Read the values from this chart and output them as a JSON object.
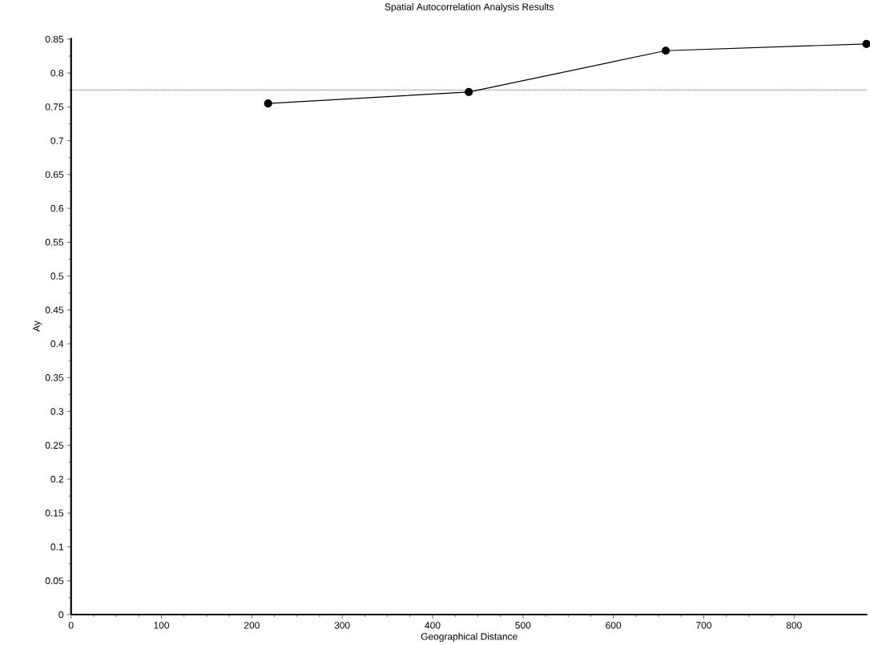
{
  "chart_data": {
    "type": "line",
    "title": "Spatial Autocorrelation Analysis Results",
    "xlabel": "Geographical Distance",
    "ylabel": "Ay",
    "x": [
      218,
      440,
      658,
      880
    ],
    "series": [
      {
        "color": "#000000",
        "values": [
          0.755,
          0.772,
          0.833,
          0.843
        ]
      }
    ],
    "xlim": [
      0,
      881
    ],
    "xticks": [
      0,
      100,
      200,
      300,
      400,
      500,
      600,
      700,
      800
    ],
    "ylim": [
      0,
      0.852
    ],
    "yticks": [
      0,
      0.05,
      0.1,
      0.15,
      0.2,
      0.25,
      0.3,
      0.35,
      0.4,
      0.45,
      0.5,
      0.55,
      0.6,
      0.65,
      0.7,
      0.75,
      0.8,
      0.85
    ],
    "ref_lines": [
      {
        "axis": "y",
        "value": 0.775,
        "color": "#000000",
        "line_style": "dotted"
      }
    ],
    "marker": "circle",
    "line_style": "solid",
    "grid": false
  }
}
